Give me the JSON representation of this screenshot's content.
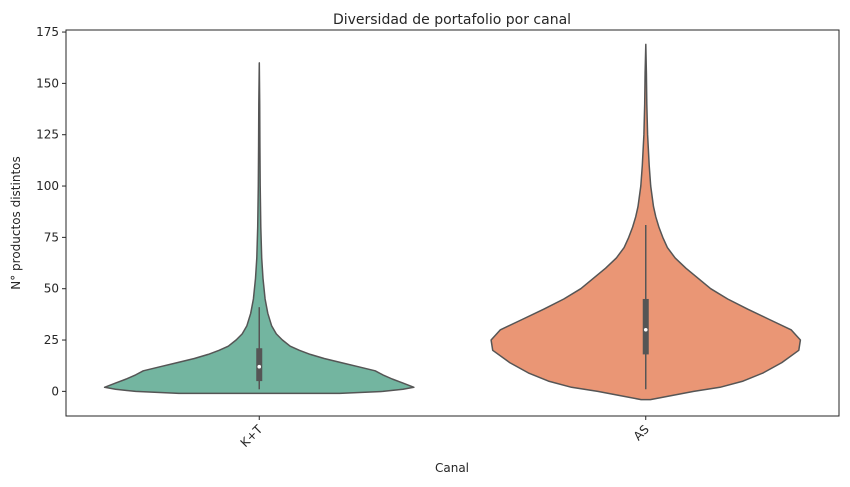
{
  "chart_data": {
    "type": "violin",
    "title": "Diversidad de portafolio por canal",
    "xlabel": "Canal",
    "ylabel": "N° productos distintos",
    "categories": [
      "K+T",
      "AS"
    ],
    "y_ticks": [
      0,
      25,
      50,
      75,
      100,
      125,
      150,
      175
    ],
    "ylim": [
      -12,
      176
    ],
    "grid": false,
    "legend": "none",
    "x_tick_rotation": 45,
    "series": [
      {
        "category": "K+T",
        "color": "#73b5a0",
        "stats": {
          "min": 1,
          "q1": 5,
          "median": 12,
          "q3": 21,
          "whisker_low": 1,
          "whisker_high": 41,
          "max": 160
        },
        "density": [
          [
            -1,
            0.52
          ],
          [
            0,
            0.8
          ],
          [
            1,
            0.93
          ],
          [
            2,
            1.0
          ],
          [
            4,
            0.93
          ],
          [
            6,
            0.86
          ],
          [
            8,
            0.8
          ],
          [
            10,
            0.75
          ],
          [
            12,
            0.64
          ],
          [
            14,
            0.53
          ],
          [
            16,
            0.42
          ],
          [
            18,
            0.33
          ],
          [
            20,
            0.26
          ],
          [
            22,
            0.2
          ],
          [
            25,
            0.15
          ],
          [
            28,
            0.11
          ],
          [
            32,
            0.08
          ],
          [
            38,
            0.055
          ],
          [
            45,
            0.038
          ],
          [
            55,
            0.024
          ],
          [
            65,
            0.016
          ],
          [
            80,
            0.01
          ],
          [
            100,
            0.006
          ],
          [
            120,
            0.004
          ],
          [
            140,
            0.003
          ],
          [
            160,
            0
          ]
        ]
      },
      {
        "category": "AS",
        "color": "#ea9675",
        "stats": {
          "min": 1,
          "q1": 18,
          "median": 30,
          "q3": 45,
          "whisker_low": 1,
          "whisker_high": 81,
          "max": 169
        },
        "density": [
          [
            -4,
            0.03
          ],
          [
            -2,
            0.17
          ],
          [
            0,
            0.31
          ],
          [
            2,
            0.48
          ],
          [
            5,
            0.63
          ],
          [
            9,
            0.76
          ],
          [
            14,
            0.88
          ],
          [
            20,
            0.99
          ],
          [
            25,
            1.0
          ],
          [
            30,
            0.94
          ],
          [
            35,
            0.8
          ],
          [
            40,
            0.66
          ],
          [
            45,
            0.53
          ],
          [
            50,
            0.42
          ],
          [
            55,
            0.34
          ],
          [
            60,
            0.26
          ],
          [
            65,
            0.19
          ],
          [
            70,
            0.14
          ],
          [
            75,
            0.11
          ],
          [
            80,
            0.085
          ],
          [
            85,
            0.065
          ],
          [
            90,
            0.05
          ],
          [
            100,
            0.032
          ],
          [
            110,
            0.022
          ],
          [
            125,
            0.012
          ],
          [
            140,
            0.007
          ],
          [
            155,
            0.004
          ],
          [
            169,
            0
          ]
        ]
      }
    ]
  }
}
